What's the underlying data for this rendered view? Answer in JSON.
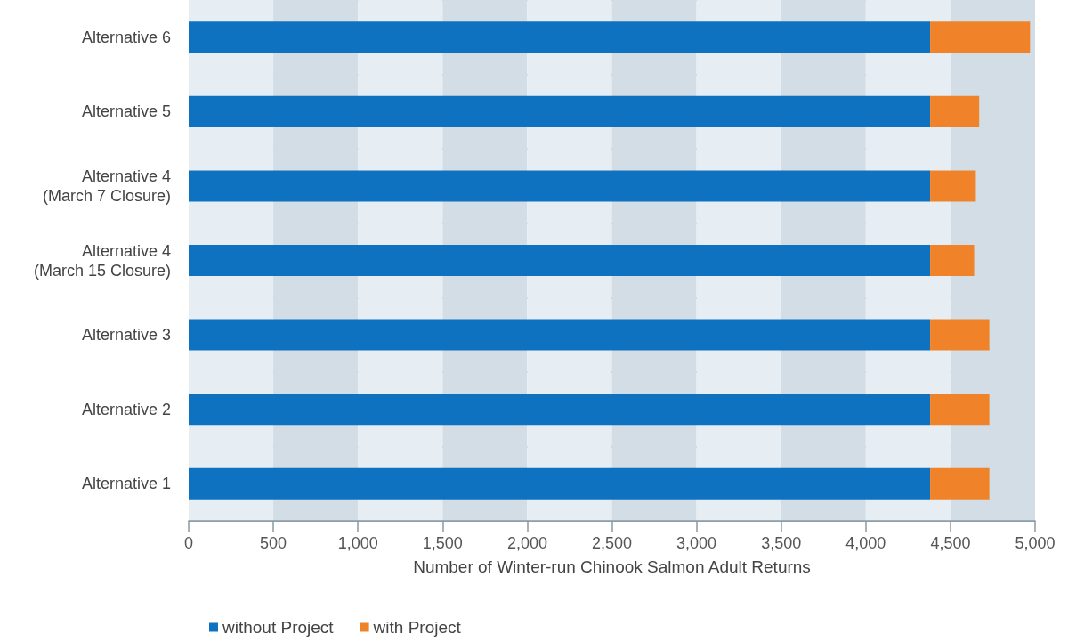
{
  "chart_data": {
    "type": "bar",
    "orientation": "horizontal",
    "stacked": true,
    "xlabel": "Number of Winter-run Chinook Salmon Adult Returns",
    "categories": [
      "Alternative 6",
      "Alternative 5",
      "Alternative 4\n(March 7 Closure)",
      "Alternative 4\n(March 15 Closure)",
      "Alternative 3",
      "Alternative 2",
      "Alternative 1"
    ],
    "series": [
      {
        "name": "without Project",
        "color": "#0f72c0",
        "values": [
          4380,
          4380,
          4380,
          4380,
          4380,
          4380,
          4380
        ]
      },
      {
        "name": "with Project",
        "color": "#f0832a",
        "values": [
          590,
          290,
          270,
          260,
          350,
          350,
          350
        ]
      }
    ],
    "xlim": [
      0,
      5000
    ],
    "xticks": [
      0,
      500,
      {
        "value": 1000,
        "label": "1,000"
      },
      {
        "value": 1500,
        "label": "1,500"
      },
      {
        "value": 2000,
        "label": "2,000"
      },
      {
        "value": 2500,
        "label": "2,500"
      },
      {
        "value": 3000,
        "label": "3,000"
      },
      {
        "value": 3500,
        "label": "3,500"
      },
      {
        "value": 4000,
        "label": "4,000"
      },
      {
        "value": 4500,
        "label": "4,500"
      },
      {
        "value": 5000,
        "label": "5,000"
      }
    ],
    "grid": true,
    "legend": "bottom left"
  }
}
